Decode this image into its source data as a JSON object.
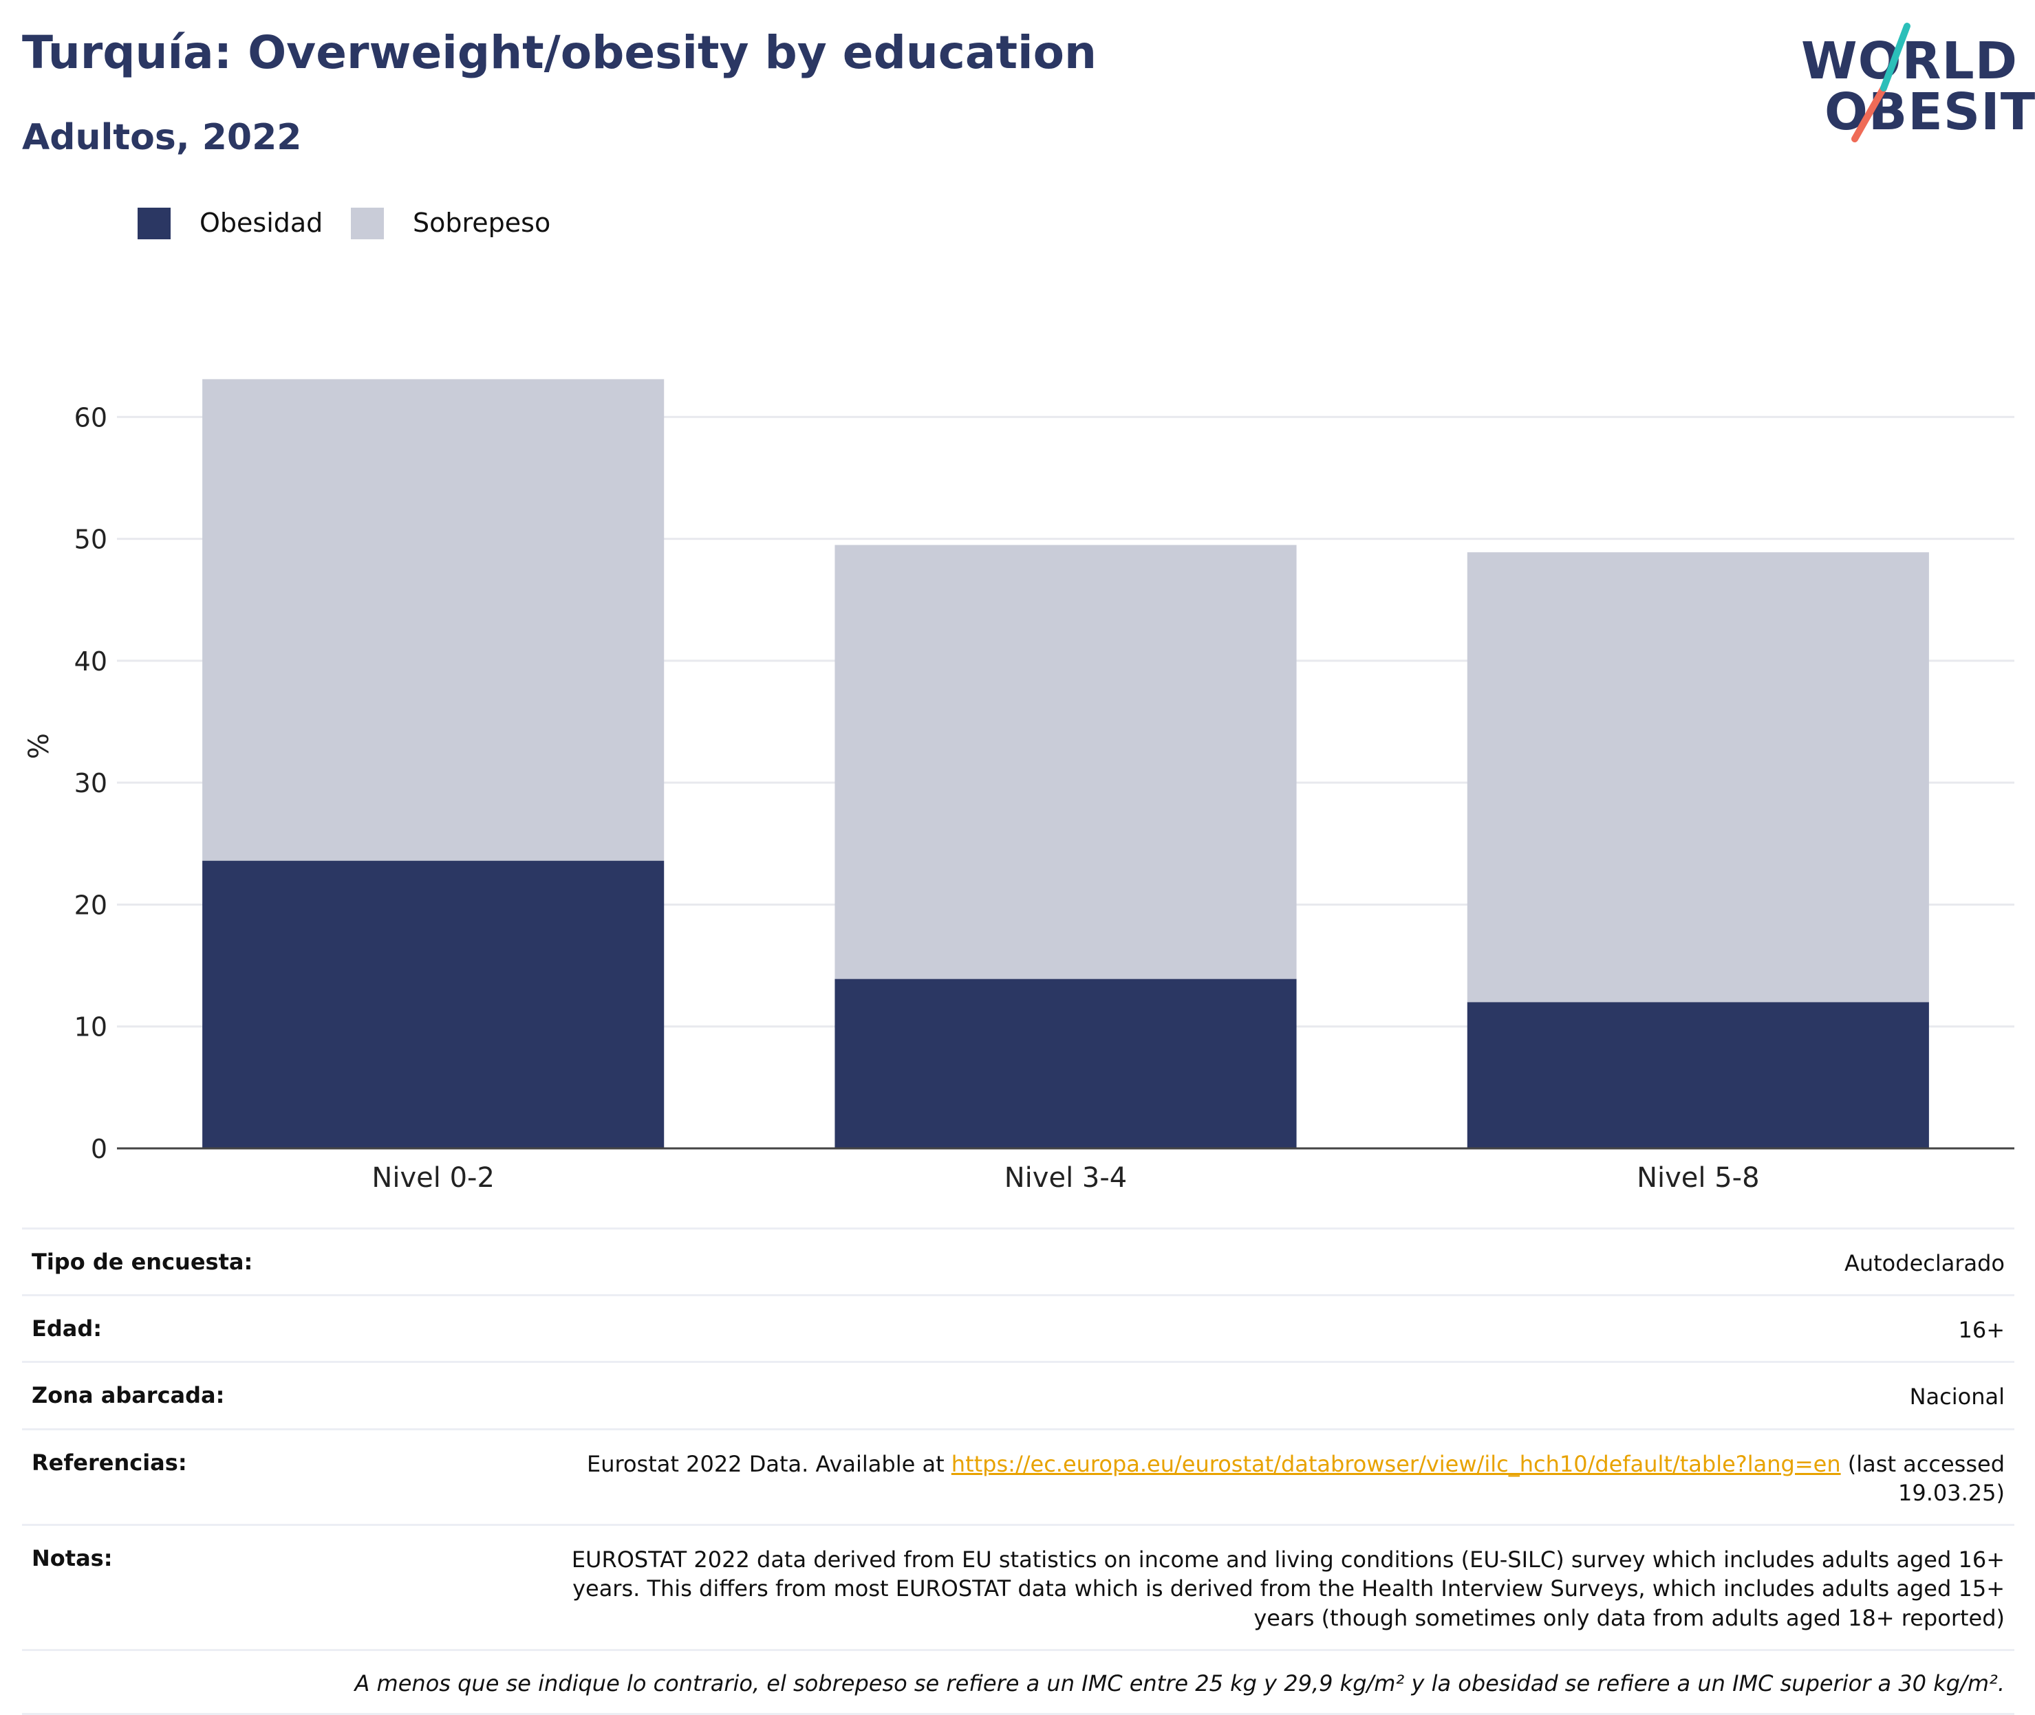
{
  "title": "Turquía: Overweight/obesity by education",
  "subtitle": "Adultos, 2022",
  "logo": {
    "line1": "WORLD",
    "line2": "OBESITY",
    "colors": {
      "navy": "#2b3763",
      "teal": "#2bbfb9",
      "coral": "#ef6b57"
    }
  },
  "legend": [
    {
      "label": "Obesidad",
      "color": "#2b3763"
    },
    {
      "label": "Sobrepeso",
      "color": "#c9ccd8"
    }
  ],
  "chart_data": {
    "type": "bar",
    "stacked": true,
    "categories": [
      "Nivel 0-2",
      "Nivel 3-4",
      "Nivel 5-8"
    ],
    "series": [
      {
        "name": "Obesidad",
        "values": [
          23.6,
          13.9,
          12.0
        ],
        "color": "#2b3763"
      },
      {
        "name": "Sobrepeso",
        "values": [
          39.5,
          35.6,
          36.9
        ],
        "color": "#c9ccd8"
      }
    ],
    "ylabel": "%",
    "ylim": [
      0,
      66
    ],
    "yticks": [
      0,
      10,
      20,
      30,
      40,
      50,
      60
    ],
    "grid": true,
    "legend_position": "top-left"
  },
  "info": {
    "survey_label": "Tipo de encuesta:",
    "survey_value": "Autodeclarado",
    "age_label": "Edad:",
    "age_value": "16+",
    "area_label": "Zona abarcada:",
    "area_value": "Nacional",
    "refs_label": "Referencias:",
    "refs_prefix": "Eurostat 2022 Data. Available at ",
    "refs_link": "https://ec.europa.eu/eurostat/databrowser/view/ilc_hch10/default/table?lang=en",
    "refs_suffix": " (last accessed 19.03.25)",
    "notes_label": "Notas:",
    "notes_value": "EUROSTAT 2022 data derived from EU statistics on income and living conditions (EU-SILC) survey which includes adults aged 16+ years. This differs from most EUROSTAT data which is derived from the Health Interview Surveys, which includes adults aged 15+ years (though sometimes only data from adults aged 18+ reported)",
    "footnote": "A menos que se indique lo contrario, el sobrepeso se refiere a un IMC entre 25 kg y 29,9 kg/m² y la obesidad se refiere a un IMC superior a 30 kg/m²."
  }
}
